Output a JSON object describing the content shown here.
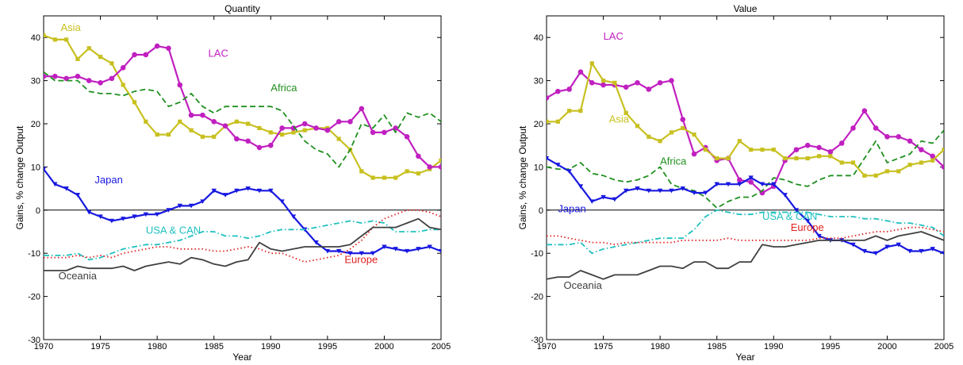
{
  "chart_data": [
    {
      "type": "line",
      "title": "Quantity",
      "xlabel": "Year",
      "ylabel": "Gains, % change Output",
      "xlim": [
        1970,
        2005
      ],
      "ylim": [
        -30,
        45
      ],
      "xticks": [
        1970,
        1975,
        1980,
        1985,
        1990,
        1995,
        2000,
        2005
      ],
      "yticks": [
        -30,
        -20,
        -10,
        0,
        10,
        20,
        30,
        40
      ],
      "x": [
        1970,
        1971,
        1972,
        1973,
        1974,
        1975,
        1976,
        1977,
        1978,
        1979,
        1980,
        1981,
        1982,
        1983,
        1984,
        1985,
        1986,
        1987,
        1988,
        1989,
        1990,
        1991,
        1992,
        1993,
        1994,
        1995,
        1996,
        1997,
        1998,
        1999,
        2000,
        2001,
        2002,
        2003,
        2004,
        2005
      ],
      "series": [
        {
          "name": "Asia",
          "color": "#c8c020",
          "style": "solid",
          "marker": "square",
          "values": [
            40.5,
            39.5,
            39.5,
            35,
            37.5,
            35.5,
            34,
            29,
            25,
            20.5,
            17.5,
            17.5,
            20.5,
            18.5,
            17,
            17,
            19.5,
            20.5,
            20,
            19,
            18,
            17.5,
            18,
            18.5,
            19,
            19,
            16.5,
            14,
            9,
            7.5,
            7.5,
            7.5,
            9,
            8.5,
            9.5,
            11.5
          ]
        },
        {
          "name": "LAC",
          "color": "#c020c0",
          "style": "solid",
          "marker": "circle",
          "values": [
            31,
            31,
            30.5,
            31,
            30,
            29.5,
            30.5,
            33,
            36,
            36,
            38,
            37.5,
            29,
            22,
            22,
            20.5,
            19.5,
            16.5,
            16,
            14.5,
            15,
            19,
            19,
            20,
            19,
            18.5,
            20.5,
            20.5,
            23.5,
            18,
            18,
            19,
            17,
            12.5,
            10,
            10
          ]
        },
        {
          "name": "Africa",
          "color": "#209020",
          "style": "dashed",
          "marker": "none",
          "values": [
            32,
            30,
            30,
            30,
            27.5,
            27,
            27,
            26.5,
            27.5,
            28,
            27.5,
            24,
            25,
            27,
            24,
            22.5,
            24,
            24,
            24,
            24,
            24,
            23,
            19.5,
            16,
            14,
            13,
            10,
            14,
            20,
            19,
            22,
            18,
            22.5,
            21.5,
            22.5,
            20.5
          ]
        },
        {
          "name": "Japan",
          "color": "#1818e0",
          "style": "solid",
          "marker": "triangle-down",
          "values": [
            9.5,
            6,
            5,
            3.5,
            -0.5,
            -1.5,
            -2.5,
            -2,
            -1.5,
            -1,
            -1,
            0,
            1,
            1,
            2,
            4.5,
            3.5,
            4.5,
            5,
            4.5,
            4.5,
            2,
            -1.5,
            -4.5,
            -7.5,
            -9.5,
            -9.5,
            -10,
            -10,
            -10,
            -8.5,
            -9,
            -9.5,
            -9,
            -8.5,
            -9.5
          ]
        },
        {
          "name": "USA & CAN",
          "color": "#20c0c0",
          "style": "dashdot",
          "marker": "none",
          "values": [
            -10.5,
            -10.5,
            -10.5,
            -10,
            -11.5,
            -11,
            -10,
            -9,
            -8.5,
            -8,
            -8,
            -7.5,
            -7,
            -6,
            -5,
            -5,
            -6,
            -6,
            -6.5,
            -6,
            -5,
            -4.5,
            -4.5,
            -4.5,
            -4,
            -3.5,
            -3,
            -2.5,
            -3,
            -2.5,
            -3,
            -5,
            -5,
            -5,
            -4.5,
            -4.5
          ]
        },
        {
          "name": "Europe",
          "color": "#e02020",
          "style": "dotted",
          "marker": "none",
          "values": [
            -11,
            -11,
            -11,
            -10.5,
            -11,
            -10.5,
            -11,
            -10,
            -9.5,
            -9,
            -8.5,
            -8.5,
            -9,
            -9,
            -9,
            -9.5,
            -9.5,
            -9,
            -8.5,
            -9,
            -10,
            -10,
            -11,
            -12,
            -11.5,
            -11,
            -10.5,
            -9,
            -7,
            -4,
            -2,
            -1,
            0,
            0,
            -0.5,
            -1.5
          ]
        },
        {
          "name": "Oceania",
          "color": "#404040",
          "style": "solid",
          "marker": "none",
          "values": [
            -14,
            -14,
            -14,
            -13,
            -13.5,
            -13.5,
            -13.5,
            -13,
            -14,
            -13,
            -12.5,
            -12,
            -12.5,
            -11,
            -11.5,
            -12.5,
            -13,
            -12,
            -11.5,
            -7.5,
            -9,
            -9.5,
            -9,
            -8.5,
            -8.5,
            -8.5,
            -8.5,
            -8,
            -6,
            -4,
            -4,
            -4,
            -3,
            -2,
            -4,
            -4.5
          ]
        }
      ]
    },
    {
      "type": "line",
      "title": "Value",
      "xlabel": "Year",
      "ylabel": "Gains, % change Output",
      "xlim": [
        1970,
        2005
      ],
      "ylim": [
        -30,
        45
      ],
      "xticks": [
        1970,
        1975,
        1980,
        1985,
        1990,
        1995,
        2000,
        2005
      ],
      "yticks": [
        -30,
        -20,
        -10,
        0,
        10,
        20,
        30,
        40
      ],
      "x": [
        1970,
        1971,
        1972,
        1973,
        1974,
        1975,
        1976,
        1977,
        1978,
        1979,
        1980,
        1981,
        1982,
        1983,
        1984,
        1985,
        1986,
        1987,
        1988,
        1989,
        1990,
        1991,
        1992,
        1993,
        1994,
        1995,
        1996,
        1997,
        1998,
        1999,
        2000,
        2001,
        2002,
        2003,
        2004,
        2005
      ],
      "series": [
        {
          "name": "LAC",
          "color": "#c020c0",
          "style": "solid",
          "marker": "circle",
          "values": [
            26,
            27.5,
            28,
            32,
            29.5,
            29,
            29,
            28.5,
            29.5,
            28,
            29.5,
            30,
            21,
            13,
            14.5,
            11.5,
            12,
            7,
            6.5,
            4,
            5.5,
            11.5,
            14,
            15,
            14.5,
            13.5,
            15.5,
            19,
            23,
            19,
            17,
            17,
            16,
            14,
            12.5,
            10
          ]
        },
        {
          "name": "Asia",
          "color": "#c8c020",
          "style": "solid",
          "marker": "square",
          "values": [
            20.5,
            20.5,
            23,
            23,
            34,
            30,
            29.5,
            22.5,
            19.5,
            17,
            16,
            18,
            19,
            17.5,
            14,
            12,
            12,
            16,
            14,
            14,
            14,
            12,
            12,
            12,
            12.5,
            12.5,
            11,
            11,
            8,
            8,
            9,
            9,
            10.5,
            11,
            11.5,
            14
          ]
        },
        {
          "name": "Africa",
          "color": "#209020",
          "style": "dashed",
          "marker": "none",
          "values": [
            10,
            9.5,
            9.5,
            11,
            8.5,
            8,
            7,
            6.5,
            7,
            8,
            10,
            6,
            5,
            4.5,
            3,
            0.5,
            2,
            3,
            3,
            4.5,
            7.5,
            7,
            6,
            5.5,
            7,
            8,
            8,
            8,
            12,
            16,
            11,
            12,
            13,
            16,
            15.5,
            18.5
          ]
        },
        {
          "name": "Japan",
          "color": "#1818e0",
          "style": "solid",
          "marker": "triangle-down",
          "values": [
            12,
            10.5,
            9,
            5.5,
            2,
            3,
            2.5,
            4.5,
            5,
            4.5,
            4.5,
            4.5,
            5,
            4,
            4,
            6,
            6,
            6,
            7.5,
            6,
            6,
            3.5,
            0,
            -2.5,
            -6,
            -7,
            -7,
            -8,
            -9.5,
            -10,
            -8.5,
            -8,
            -9.5,
            -9.5,
            -9,
            -10
          ]
        },
        {
          "name": "USA & CAN",
          "color": "#20c0c0",
          "style": "dashdot",
          "marker": "none",
          "values": [
            -8,
            -8,
            -8,
            -7.5,
            -10,
            -9,
            -8.5,
            -8,
            -7.5,
            -7,
            -6.5,
            -6.5,
            -6.5,
            -4.5,
            -1.5,
            0,
            -0.5,
            -1,
            -1,
            -0.5,
            -0.5,
            -0.5,
            -0.5,
            -0.5,
            -1,
            -1.5,
            -1.5,
            -1.5,
            -2,
            -2,
            -2.5,
            -3,
            -3,
            -3.5,
            -4,
            -6
          ]
        },
        {
          "name": "Europe",
          "color": "#e02020",
          "style": "dotted",
          "marker": "none",
          "values": [
            -6,
            -6,
            -6.5,
            -7,
            -7.5,
            -7.5,
            -8,
            -7.5,
            -7.5,
            -7.5,
            -7.5,
            -7.5,
            -7,
            -7,
            -7,
            -7,
            -6.5,
            -7,
            -7,
            -7,
            -7,
            -7,
            -7,
            -7,
            -6.5,
            -6.5,
            -6.5,
            -6,
            -5.5,
            -5,
            -5,
            -4.5,
            -4,
            -4,
            -4.5,
            -5
          ]
        },
        {
          "name": "Oceania",
          "color": "#404040",
          "style": "solid",
          "marker": "none",
          "values": [
            -16,
            -15.5,
            -15.5,
            -14,
            -15,
            -16,
            -15,
            -15,
            -15,
            -14,
            -13,
            -13,
            -13.5,
            -12,
            -12,
            -13.5,
            -13.5,
            -12,
            -12,
            -8,
            -8.5,
            -8.5,
            -8,
            -7.5,
            -7,
            -7,
            -7,
            -7,
            -7,
            -6,
            -7,
            -6,
            -5.5,
            -5,
            -6,
            -7
          ]
        }
      ]
    }
  ]
}
